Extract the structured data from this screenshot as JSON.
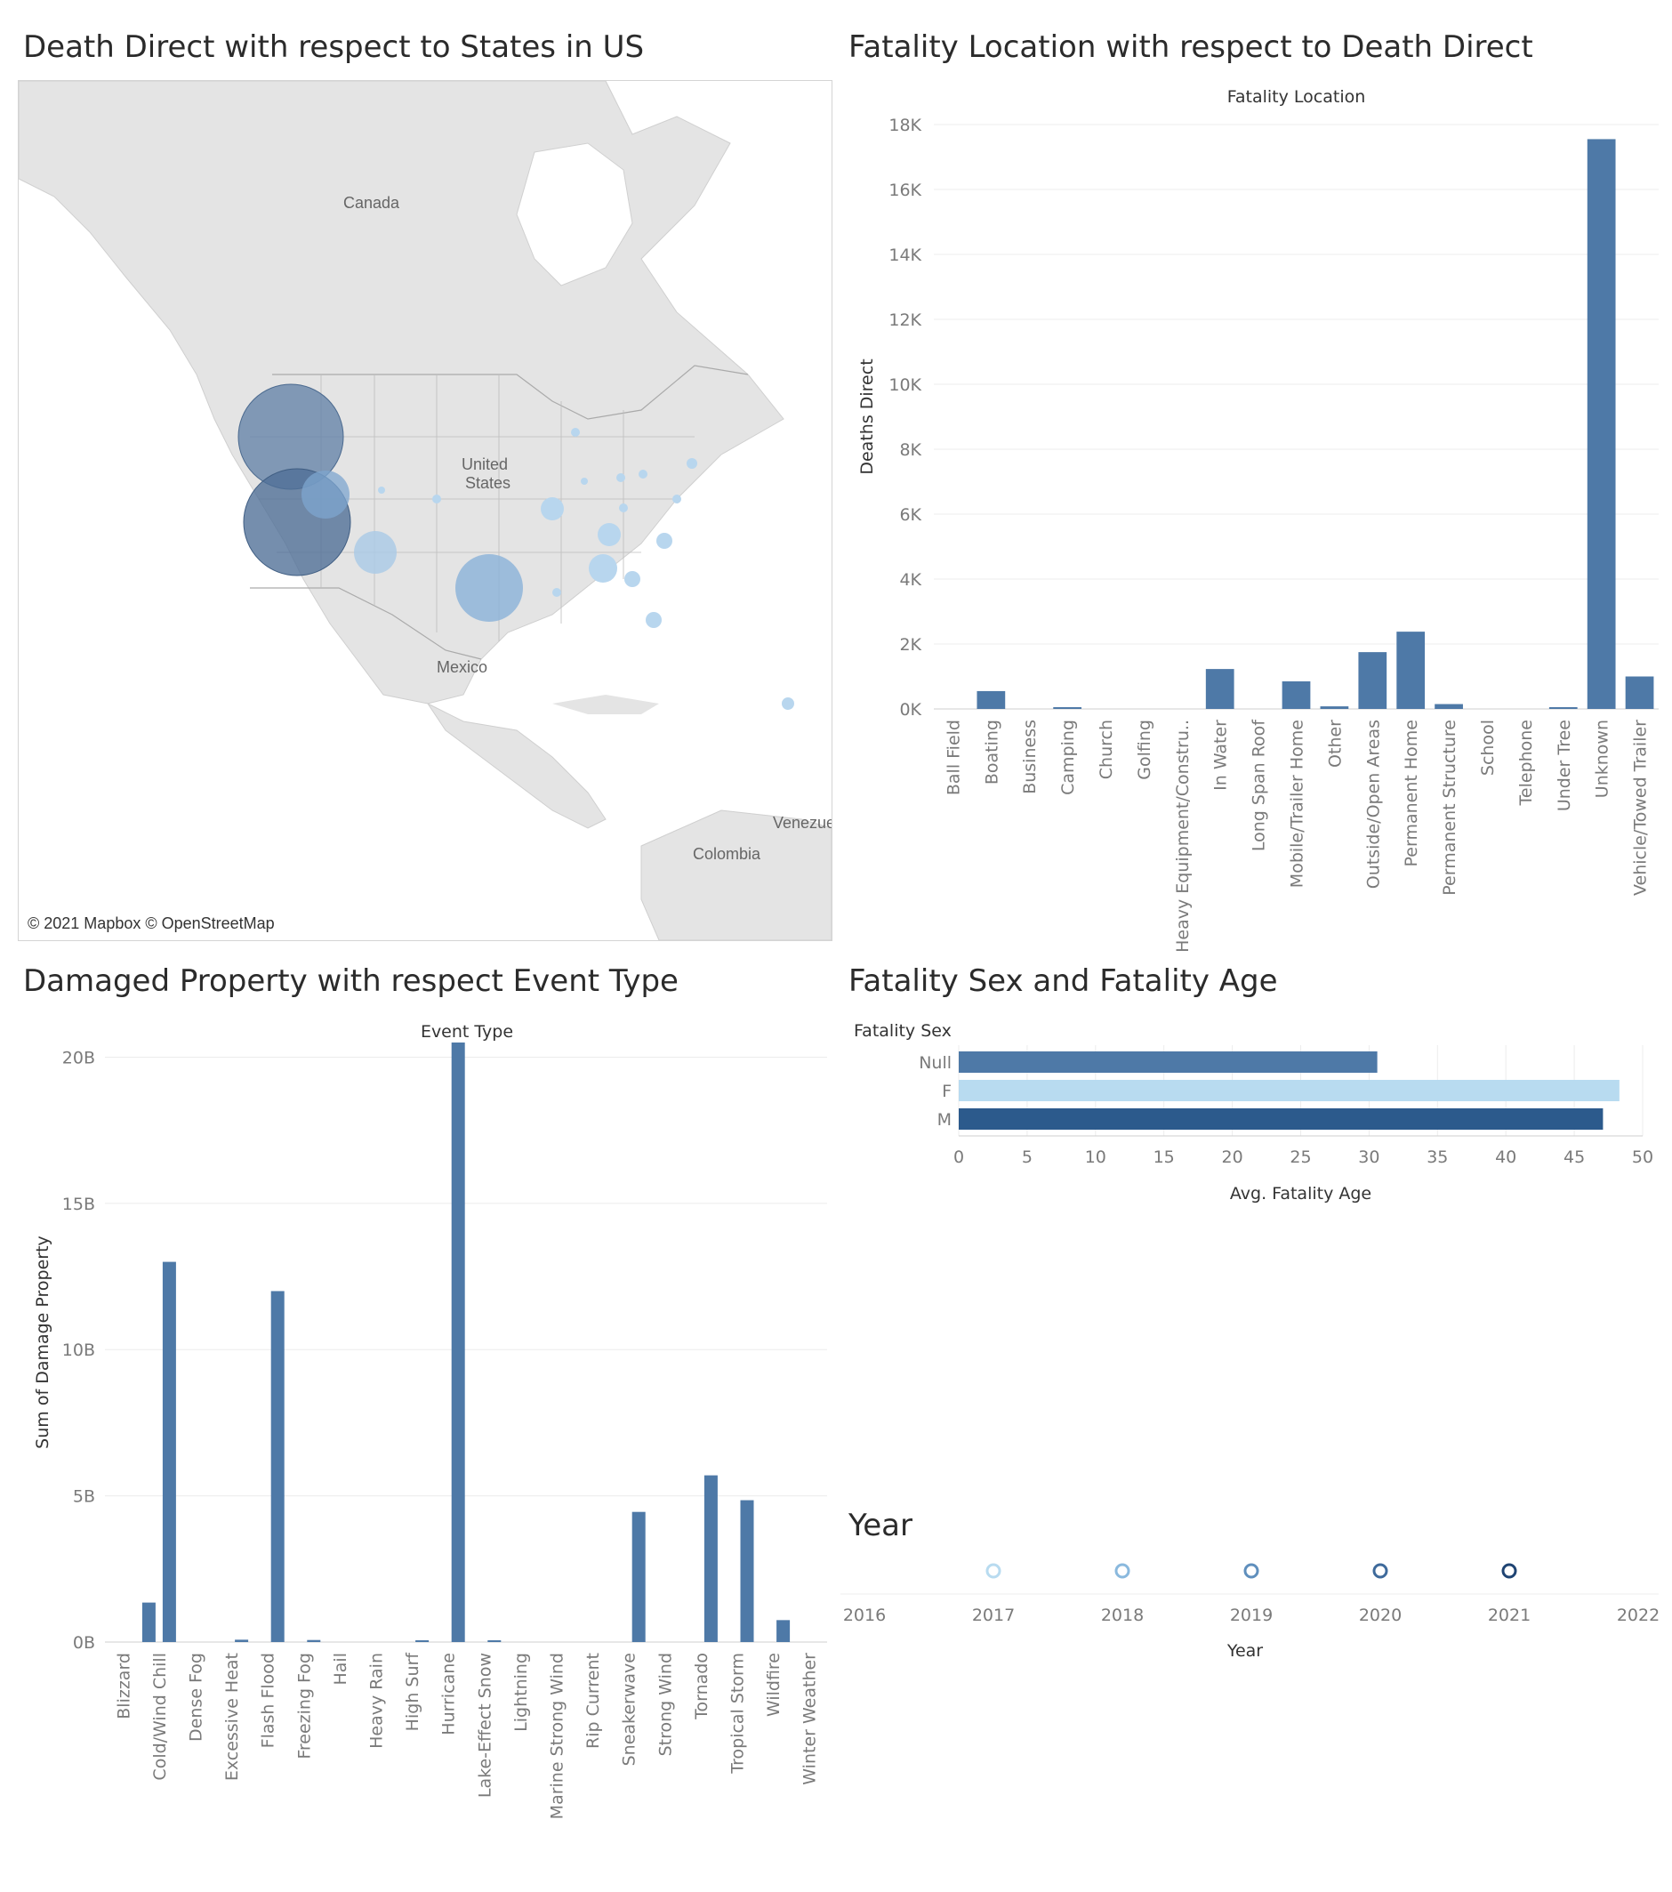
{
  "panels": {
    "map_title": "Death Direct with respect to States in US",
    "location_title": "Fatality Location with respect to Death Direct",
    "damage_title": "Damaged Property with respect Event Type",
    "sexage_title": "Fatality Sex and Fatality Age",
    "year_title": "Year"
  },
  "map": {
    "credit": "© 2021 Mapbox © OpenStreetMap",
    "labels": {
      "canada": "Canada",
      "united_states_line1": "United",
      "united_states_line2": "States",
      "mexico": "Mexico",
      "colombia": "Colombia",
      "venezuela": "Venezue"
    }
  },
  "chart_data": [
    {
      "type": "bar",
      "title": "Fatality Location",
      "xlabel": "",
      "ylabel": "Deaths Direct",
      "ylim": [
        0,
        18000
      ],
      "yticks": [
        0,
        2000,
        4000,
        6000,
        8000,
        10000,
        12000,
        14000,
        16000,
        18000
      ],
      "ytick_labels": [
        "0K",
        "2K",
        "4K",
        "6K",
        "8K",
        "10K",
        "12K",
        "14K",
        "16K",
        "18K"
      ],
      "categories": [
        "Ball Field",
        "Boating",
        "Business",
        "Camping",
        "Church",
        "Golfing",
        "Heavy Equipment/Constru..",
        "In Water",
        "Long Span Roof",
        "Mobile/Trailer Home",
        "Other",
        "Outside/Open Areas",
        "Permanent Home",
        "Permanent Structure",
        "School",
        "Telephone",
        "Under Tree",
        "Unknown",
        "Vehicle/Towed Trailer"
      ],
      "values": [
        0,
        550,
        0,
        40,
        0,
        0,
        0,
        1230,
        0,
        850,
        80,
        1750,
        2380,
        150,
        0,
        0,
        40,
        17550,
        1000
      ],
      "color": "#4e79a7"
    },
    {
      "type": "bar",
      "title": "Event Type",
      "xlabel": "",
      "ylabel": "Sum of Damage Property",
      "ylim": [
        0,
        20500000000
      ],
      "yticks": [
        0,
        5000000000,
        10000000000,
        15000000000,
        20000000000
      ],
      "ytick_labels": [
        "0B",
        "5B",
        "10B",
        "15B",
        "20B"
      ],
      "categories": [
        "Blizzard",
        "Cold/Wind Chill",
        "Dense Fog",
        "Excessive Heat",
        "Flash Flood",
        "Freezing Fog",
        "Hail",
        "Heavy Rain",
        "High Surf",
        "Hurricane",
        "Lake-Effect Snow",
        "Lightning",
        "Marine Strong Wind",
        "Rip Current",
        "Sneakerwave",
        "Strong Wind",
        "Tornado",
        "Tropical Storm",
        "Wildfire",
        "Winter Weather"
      ],
      "series": [
        {
          "values": [
            0,
            1350000000,
            0,
            0,
            0,
            0,
            0,
            0,
            0,
            0,
            0,
            0,
            0,
            0,
            0,
            0,
            0,
            0,
            0,
            0
          ]
        },
        {
          "values": [
            0,
            13000000000,
            0,
            80000000,
            12000000000,
            70000000,
            0,
            0,
            50000000,
            20500000000,
            50000000,
            0,
            0,
            0,
            4450000000,
            0,
            5700000000,
            4850000000,
            750000000,
            0
          ]
        }
      ],
      "color": "#4e79a7"
    },
    {
      "type": "bar",
      "orientation": "horizontal",
      "title": "",
      "row_header": "Fatality Sex",
      "xlabel": "Avg. Fatality Age",
      "xlim": [
        0,
        50
      ],
      "xticks": [
        0,
        5,
        10,
        15,
        20,
        25,
        30,
        35,
        40,
        45,
        50
      ],
      "categories": [
        "Null",
        "F",
        "M"
      ],
      "values": [
        30.6,
        48.3,
        47.1
      ],
      "colors": [
        "#4e79a7",
        "#b8dbf0",
        "#2c5a8c"
      ]
    },
    {
      "type": "scatter",
      "title": "",
      "xlabel": "Year",
      "xlim": [
        2016,
        2022
      ],
      "xticks": [
        2016,
        2017,
        2018,
        2019,
        2020,
        2021,
        2022
      ],
      "x": [
        2017,
        2018,
        2019,
        2020,
        2021
      ],
      "colors": [
        "#b8dbf0",
        "#8ab9de",
        "#5f8fbd",
        "#3e6a9b",
        "#1f4473"
      ]
    }
  ]
}
